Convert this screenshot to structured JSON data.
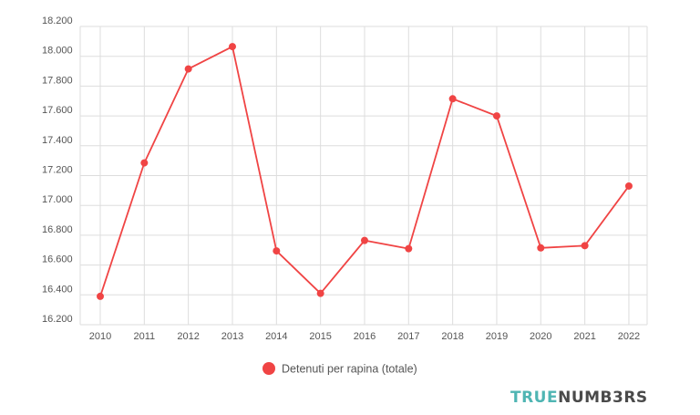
{
  "chart_data": {
    "type": "line",
    "categories": [
      "2010",
      "2011",
      "2012",
      "2013",
      "2014",
      "2015",
      "2016",
      "2017",
      "2018",
      "2019",
      "2020",
      "2021",
      "2022"
    ],
    "series": [
      {
        "name": "Detenuti per rapina (totale)",
        "color": "#f04444",
        "values": [
          16390,
          17285,
          17915,
          18065,
          16695,
          16410,
          16765,
          16710,
          17715,
          17600,
          16715,
          16730,
          17130
        ]
      }
    ],
    "ylim": [
      16200,
      18200
    ],
    "yticks": [
      16200,
      16400,
      16600,
      16800,
      17000,
      17200,
      17400,
      17600,
      17800,
      18000,
      18200
    ],
    "ytick_labels": [
      "16.200",
      "16.400",
      "16.600",
      "16.800",
      "17.000",
      "17.200",
      "17.400",
      "17.600",
      "17.800",
      "18.000",
      "18.200"
    ],
    "grid": true,
    "legend_position": "bottom-center",
    "xlabel": "",
    "ylabel": ""
  },
  "brand": {
    "part1": "TRUE",
    "part2": "NUMB3RS",
    "color1": "#4fb5b3",
    "color2": "#4a4a4a"
  }
}
